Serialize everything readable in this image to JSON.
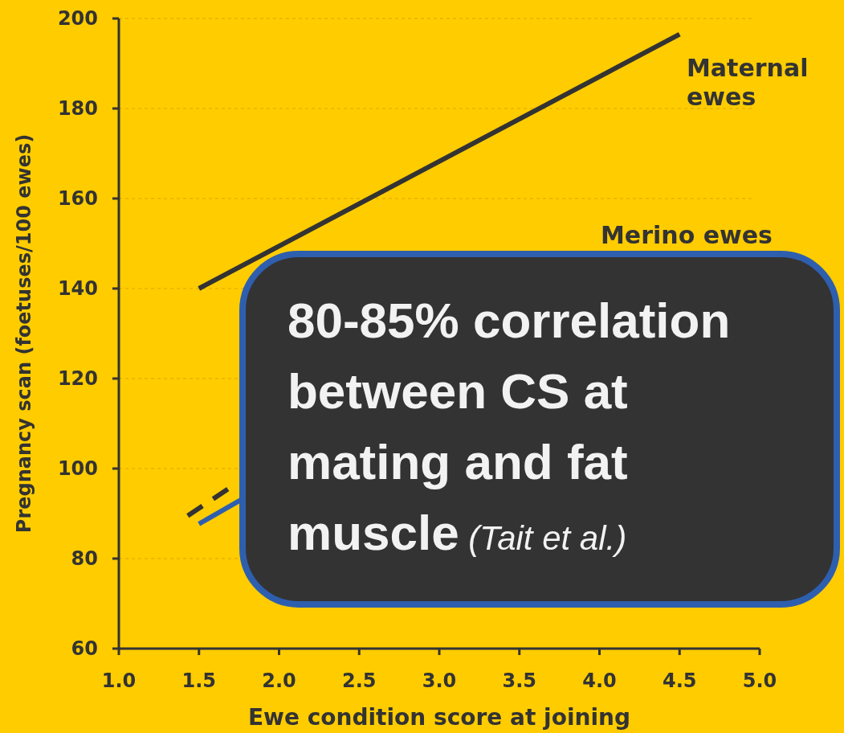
{
  "chart_data": {
    "type": "line",
    "xlabel": "Ewe condition score at joining",
    "ylabel": "Pregnancy scan (foetuses/100 ewes)",
    "xlim": [
      1.0,
      5.0
    ],
    "xticks": [
      {
        "value": 1,
        "label": "1.0"
      },
      {
        "value": 1.5,
        "label": "1.5"
      },
      {
        "value": 2,
        "label": "2.0"
      },
      {
        "value": 2.5,
        "label": "2.5"
      },
      {
        "value": 3,
        "label": "3.0"
      },
      {
        "value": 3.5,
        "label": "3.5"
      },
      {
        "value": 4,
        "label": "4.0"
      },
      {
        "value": 4.5,
        "label": "4.5"
      },
      {
        "value": 5,
        "label": "5.0"
      }
    ],
    "ylim": [
      60,
      200
    ],
    "yticks": [
      60,
      80,
      100,
      120,
      140,
      160,
      180,
      200
    ],
    "grid": "y",
    "series": [
      {
        "color": "#333333",
        "x": [
          1.5,
          4.5
        ],
        "values": [
          140,
          196.5
        ],
        "line_style": "solid"
      },
      {
        "color": "#2e5fae",
        "x": [
          1.5,
          1.76
        ],
        "values": [
          87.7,
          93
        ],
        "line_style": "solid"
      },
      {
        "color": "#333333",
        "x": [
          1.43,
          1.7
        ],
        "values": [
          89.5,
          95.9
        ],
        "line_style": "dashed"
      }
    ],
    "annotations": [
      "Maternal ewes",
      "Merino ewes",
      "80-85% correlation between CS at mating and fat muscle",
      "(Tait et al.)"
    ]
  }
}
